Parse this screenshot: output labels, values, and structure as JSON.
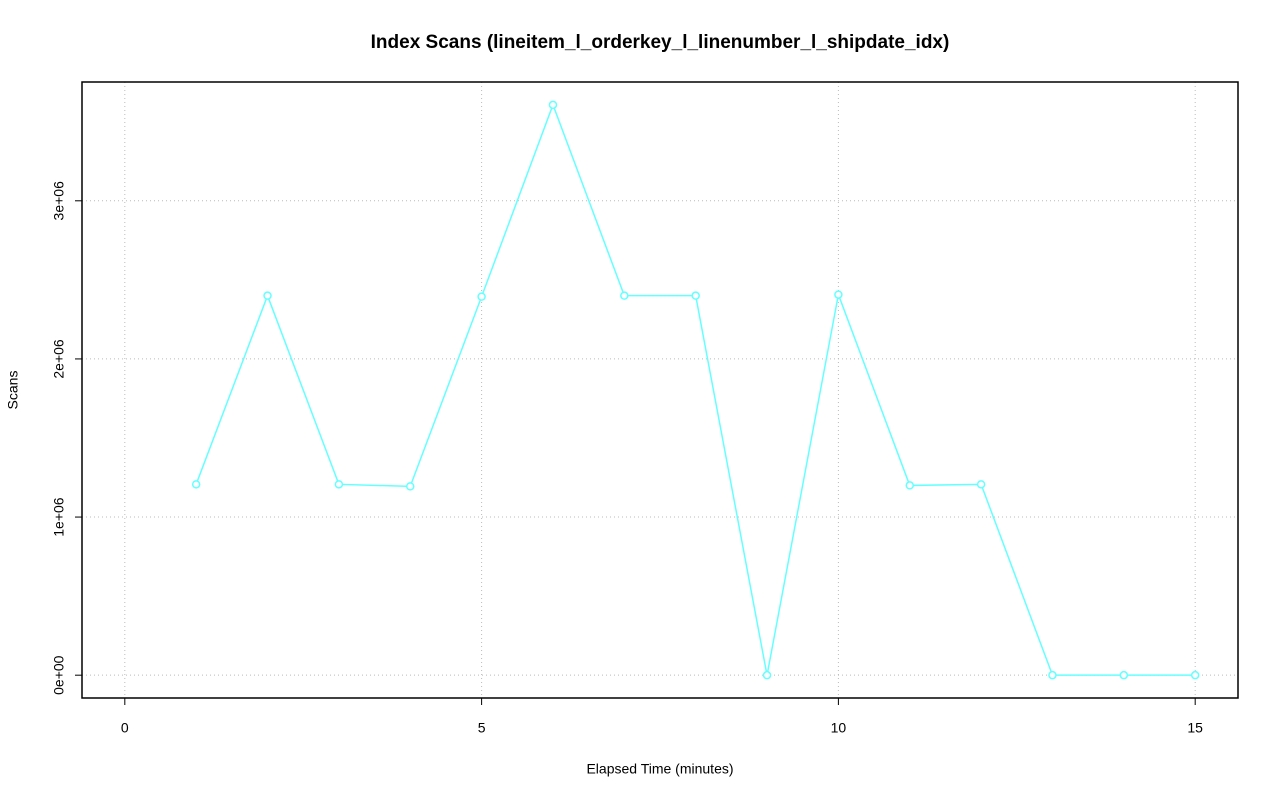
{
  "chart_data": {
    "type": "line",
    "title": "Index Scans (lineitem_l_orderkey_l_linenumber_l_shipdate_idx)",
    "x_label": "Elapsed Time (minutes)",
    "y_label": "Scans",
    "x": [
      1,
      2,
      3,
      4,
      5,
      6,
      7,
      8,
      9,
      10,
      11,
      12,
      13,
      14,
      15
    ],
    "series": [
      {
        "color": "#66ffff",
        "values": [
          1207000,
          2400000,
          1207000,
          1194000,
          2394000,
          3607000,
          2400000,
          2400000,
          0,
          2407000,
          1200000,
          1207000,
          0,
          0,
          0
        ]
      }
    ],
    "xlim": [
      -0.6,
      15.6
    ],
    "xticks": [
      0,
      5,
      10,
      15
    ],
    "ylim": [
      -144280,
      3751280
    ],
    "yticks": [
      {
        "value": 0,
        "label": "0e+00"
      },
      {
        "value": 1000000,
        "label": "1e+06"
      },
      {
        "value": 2000000,
        "label": "2e+06"
      },
      {
        "value": 3000000,
        "label": "3e+06"
      }
    ],
    "grid": true
  }
}
